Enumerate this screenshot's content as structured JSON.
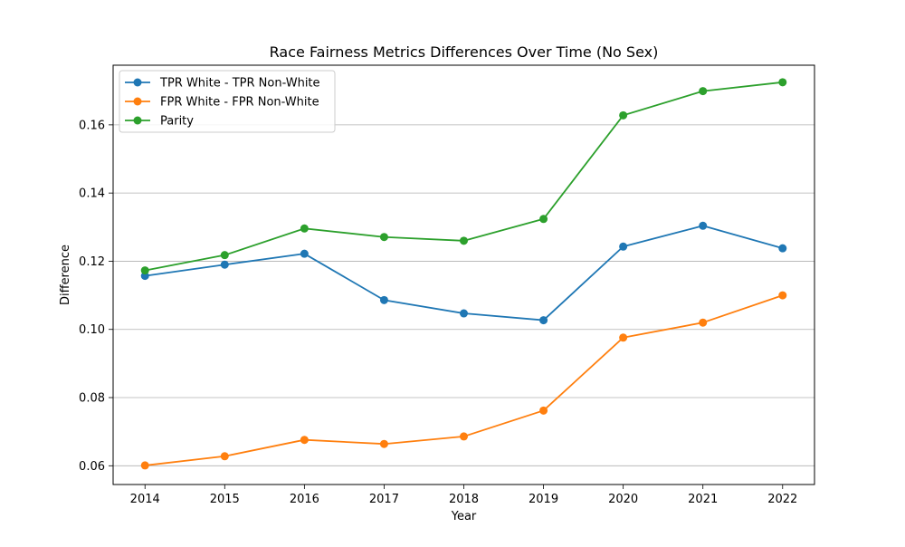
{
  "chart_data": {
    "type": "line",
    "title": "Race Fairness Metrics Differences Over Time (No Sex)",
    "xlabel": "Year",
    "ylabel": "Difference",
    "x": [
      2014,
      2015,
      2016,
      2017,
      2018,
      2019,
      2020,
      2021,
      2022
    ],
    "xlim": [
      2013.6,
      2022.4
    ],
    "ylim": [
      0.0545,
      0.1775
    ],
    "yticks": [
      0.06,
      0.08,
      0.1,
      0.12,
      0.14,
      0.16
    ],
    "ytick_labels": [
      "0.06",
      "0.08",
      "0.10",
      "0.12",
      "0.14",
      "0.16"
    ],
    "xtick_labels": [
      "2014",
      "2015",
      "2016",
      "2017",
      "2018",
      "2019",
      "2020",
      "2021",
      "2022"
    ],
    "grid": "horizontal",
    "legend_position": "top-left",
    "series": [
      {
        "name": "TPR White - TPR Non-White",
        "color": "#1f77b4",
        "values": [
          0.1157,
          0.119,
          0.1222,
          0.1086,
          0.1047,
          0.1027,
          0.1243,
          0.1304,
          0.1238
        ]
      },
      {
        "name": "FPR White - FPR Non-White",
        "color": "#ff7f0e",
        "values": [
          0.0601,
          0.0628,
          0.0676,
          0.0664,
          0.0686,
          0.0762,
          0.0976,
          0.102,
          0.11
        ]
      },
      {
        "name": "Parity",
        "color": "#2ca02c",
        "values": [
          0.1173,
          0.1218,
          0.1296,
          0.1271,
          0.126,
          0.1324,
          0.1628,
          0.1699,
          0.1725
        ]
      }
    ]
  }
}
